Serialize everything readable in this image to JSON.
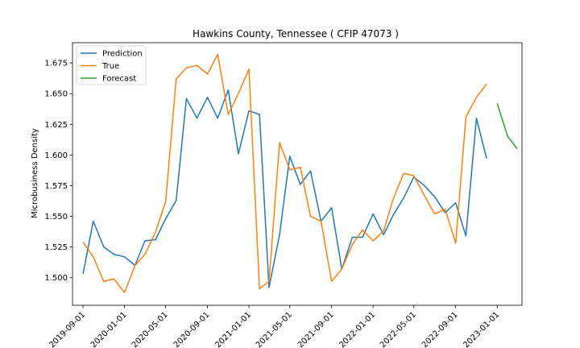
{
  "chart_data": {
    "type": "line",
    "title": "Hawkins County, Tennessee ( CFIP 47073 )",
    "xlabel": "",
    "ylabel": "Microbusiness Density",
    "xlim": [
      "2019-08-01",
      "2023-03-15"
    ],
    "ylim": [
      1.4775,
      1.6915
    ],
    "xticks": [
      "2019-09-01",
      "2020-01-01",
      "2020-05-01",
      "2020-09-01",
      "2021-01-01",
      "2021-05-01",
      "2021-09-01",
      "2022-01-01",
      "2022-05-01",
      "2022-09-01",
      "2023-01-01"
    ],
    "yticks": [
      1.5,
      1.525,
      1.55,
      1.575,
      1.6,
      1.625,
      1.65,
      1.675
    ],
    "ytick_labels": [
      "1.500",
      "1.525",
      "1.550",
      "1.575",
      "1.600",
      "1.625",
      "1.650",
      "1.675"
    ],
    "legend_position": "upper-left",
    "grid": false,
    "series": [
      {
        "name": "Prediction",
        "color": "#1f77b4",
        "x": [
          "2019-09-01",
          "2019-10-01",
          "2019-11-01",
          "2019-12-01",
          "2020-01-01",
          "2020-02-01",
          "2020-03-01",
          "2020-04-01",
          "2020-05-01",
          "2020-06-01",
          "2020-07-01",
          "2020-08-01",
          "2020-09-01",
          "2020-10-01",
          "2020-11-01",
          "2020-12-01",
          "2021-01-01",
          "2021-02-01",
          "2021-03-01",
          "2021-04-01",
          "2021-05-01",
          "2021-06-01",
          "2021-07-01",
          "2021-08-01",
          "2021-09-01",
          "2021-10-01",
          "2021-11-01",
          "2021-12-01",
          "2022-01-01",
          "2022-02-01",
          "2022-03-01",
          "2022-04-01",
          "2022-05-01",
          "2022-06-01",
          "2022-07-01",
          "2022-08-01",
          "2022-09-01",
          "2022-10-01",
          "2022-11-01",
          "2022-12-01"
        ],
        "values": [
          1.503,
          1.546,
          1.525,
          1.519,
          1.517,
          1.51,
          1.53,
          1.531,
          1.548,
          1.563,
          1.646,
          1.63,
          1.647,
          1.63,
          1.653,
          1.601,
          1.636,
          1.633,
          1.492,
          1.535,
          1.599,
          1.576,
          1.587,
          1.546,
          1.557,
          1.507,
          1.533,
          1.533,
          1.552,
          1.535,
          1.551,
          1.565,
          1.582,
          1.575,
          1.566,
          1.553,
          1.561,
          1.534,
          1.63,
          1.597
        ]
      },
      {
        "name": "True",
        "color": "#ff7f0e",
        "x": [
          "2019-09-01",
          "2019-10-01",
          "2019-11-01",
          "2019-12-01",
          "2020-01-01",
          "2020-02-01",
          "2020-03-01",
          "2020-04-01",
          "2020-05-01",
          "2020-06-01",
          "2020-07-01",
          "2020-08-01",
          "2020-09-01",
          "2020-10-01",
          "2020-11-01",
          "2020-12-01",
          "2021-01-01",
          "2021-02-01",
          "2021-03-01",
          "2021-04-01",
          "2021-05-01",
          "2021-06-01",
          "2021-07-01",
          "2021-08-01",
          "2021-09-01",
          "2021-10-01",
          "2021-11-01",
          "2021-12-01",
          "2022-01-01",
          "2022-02-01",
          "2022-03-01",
          "2022-04-01",
          "2022-05-01",
          "2022-06-01",
          "2022-07-01",
          "2022-08-01",
          "2022-09-01",
          "2022-10-01",
          "2022-11-01",
          "2022-12-01"
        ],
        "values": [
          1.529,
          1.517,
          1.497,
          1.499,
          1.488,
          1.51,
          1.519,
          1.537,
          1.562,
          1.662,
          1.671,
          1.673,
          1.666,
          1.682,
          1.633,
          1.65,
          1.67,
          1.491,
          1.497,
          1.61,
          1.588,
          1.59,
          1.55,
          1.546,
          1.497,
          1.507,
          1.527,
          1.539,
          1.53,
          1.538,
          1.564,
          1.585,
          1.583,
          1.567,
          1.552,
          1.556,
          1.528,
          1.631,
          1.647,
          1.658
        ]
      },
      {
        "name": "Forecast",
        "color": "#2ca02c",
        "x": [
          "2023-01-01",
          "2023-02-01",
          "2023-03-01"
        ],
        "values": [
          1.642,
          1.615,
          1.605
        ]
      }
    ]
  }
}
